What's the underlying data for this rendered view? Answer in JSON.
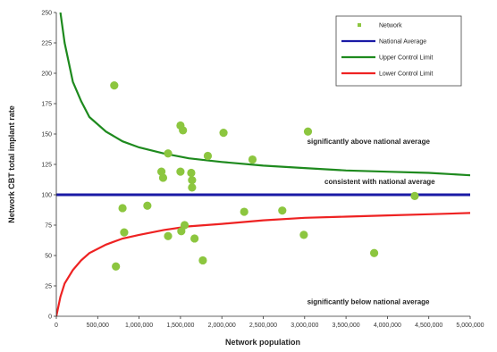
{
  "chart_data": {
    "type": "scatter",
    "xlabel": "Network population",
    "ylabel": "Network CBT total implant rate",
    "xlim": [
      0,
      5000000
    ],
    "ylim": [
      0,
      250
    ],
    "x_ticks": [
      0,
      500000,
      1000000,
      1500000,
      2000000,
      2500000,
      3000000,
      3500000,
      4000000,
      4500000,
      5000000
    ],
    "x_tick_labels": [
      "0",
      "500,000",
      "1,000,000",
      "1,500,000",
      "2,000,000",
      "2,500,000",
      "3,000,000",
      "3,500,000",
      "4,000,000",
      "4,500,000",
      "5,000,000"
    ],
    "y_ticks": [
      0,
      25,
      50,
      75,
      100,
      125,
      150,
      175,
      200,
      225,
      250
    ],
    "y_tick_labels": [
      "0",
      "25",
      "50",
      "75",
      "100",
      "125",
      "150",
      "175",
      "200",
      "225",
      "250"
    ],
    "grid": false,
    "legend_position": "top-right",
    "legend": [
      {
        "label": "Network",
        "kind": "marker",
        "color": "#8cc63f"
      },
      {
        "label": "National Average",
        "kind": "line",
        "color": "#1a1aa6"
      },
      {
        "label": "Upper Control Limit",
        "kind": "line",
        "color": "#1e8a1e"
      },
      {
        "label": "Lower Control Limit",
        "kind": "line",
        "color": "#ee2222"
      }
    ],
    "annotations": [
      {
        "text": "significantly above national average",
        "x": 3030000,
        "y": 142
      },
      {
        "text": "consistent with national average",
        "x": 3240000,
        "y": 109
      },
      {
        "text": "significantly below national average",
        "x": 3030000,
        "y": 10
      }
    ],
    "series": [
      {
        "name": "Network",
        "color": "#8cc63f",
        "points": [
          [
            700000,
            190
          ],
          [
            720000,
            41
          ],
          [
            800000,
            89
          ],
          [
            820000,
            69
          ],
          [
            1100000,
            91
          ],
          [
            1270000,
            119
          ],
          [
            1290000,
            114
          ],
          [
            1350000,
            134
          ],
          [
            1350000,
            66
          ],
          [
            1500000,
            157
          ],
          [
            1500000,
            119
          ],
          [
            1510000,
            70
          ],
          [
            1530000,
            153
          ],
          [
            1550000,
            75
          ],
          [
            1630000,
            118
          ],
          [
            1640000,
            112
          ],
          [
            1640000,
            106
          ],
          [
            1670000,
            64
          ],
          [
            1770000,
            46
          ],
          [
            1830000,
            132
          ],
          [
            2020000,
            151
          ],
          [
            2270000,
            86
          ],
          [
            2370000,
            129
          ],
          [
            2730000,
            87
          ],
          [
            2990000,
            67
          ],
          [
            3040000,
            152
          ],
          [
            3840000,
            52
          ],
          [
            4330000,
            99
          ]
        ]
      },
      {
        "name": "National Average",
        "color": "#1a1aa6",
        "points": [
          [
            0,
            100
          ],
          [
            5000000,
            100
          ]
        ]
      },
      {
        "name": "Upper Control Limit",
        "color": "#1e8a1e",
        "points": [
          [
            50000,
            250
          ],
          [
            100000,
            225
          ],
          [
            200000,
            193
          ],
          [
            300000,
            177
          ],
          [
            400000,
            164
          ],
          [
            600000,
            152
          ],
          [
            800000,
            144
          ],
          [
            1000000,
            139
          ],
          [
            1300000,
            134
          ],
          [
            1600000,
            130
          ],
          [
            2000000,
            127
          ],
          [
            2500000,
            124
          ],
          [
            3000000,
            122
          ],
          [
            3500000,
            120
          ],
          [
            4000000,
            119
          ],
          [
            4500000,
            118
          ],
          [
            5000000,
            116
          ]
        ]
      },
      {
        "name": "Lower Control Limit",
        "color": "#ee2222",
        "points": [
          [
            0,
            0
          ],
          [
            50000,
            16
          ],
          [
            100000,
            27
          ],
          [
            200000,
            38
          ],
          [
            300000,
            46
          ],
          [
            400000,
            52
          ],
          [
            600000,
            59
          ],
          [
            800000,
            64
          ],
          [
            1000000,
            67
          ],
          [
            1300000,
            71
          ],
          [
            1600000,
            74
          ],
          [
            2000000,
            76
          ],
          [
            2500000,
            79
          ],
          [
            3000000,
            81
          ],
          [
            3500000,
            82
          ],
          [
            4000000,
            83
          ],
          [
            4500000,
            84
          ],
          [
            5000000,
            85
          ]
        ]
      }
    ]
  }
}
